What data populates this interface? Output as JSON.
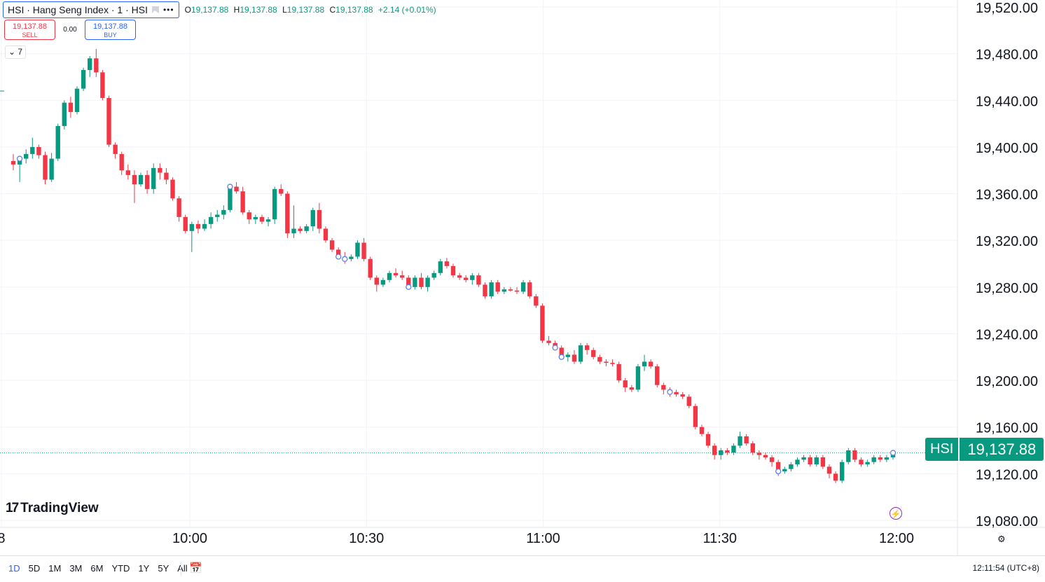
{
  "header": {
    "symbol_title": "HSI · Hang Seng Index · 1 · HSI",
    "more_icon": "more-dots-icon",
    "ohlc": [
      {
        "key": "O",
        "value": "19,137.88"
      },
      {
        "key": "H",
        "value": "19,137.88"
      },
      {
        "key": "L",
        "value": "19,137.88"
      },
      {
        "key": "C",
        "value": "19,137.88"
      }
    ],
    "change": "+2.14 (+0.01%)"
  },
  "trade": {
    "sell_price": "19,137.88",
    "sell_label": "SELL",
    "spread": "0.00",
    "buy_price": "19,137.88",
    "buy_label": "BUY"
  },
  "indicators_toggle": "⌄ 7",
  "logo_text": "TradingView",
  "price_label": {
    "symbol": "HSI",
    "value": "19,137.88"
  },
  "bottom": {
    "ranges": [
      "1D",
      "5D",
      "1M",
      "3M",
      "6M",
      "YTD",
      "1Y",
      "5Y",
      "All"
    ],
    "active_range": "1D",
    "clock": "12:11:54 (UTC+8)"
  },
  "colors": {
    "up": "#089981",
    "down": "#f23645",
    "grid": "#f0f3fa",
    "accent": "#2962ff"
  },
  "chart_data": {
    "type": "candlestick",
    "y_ticks": [
      "19,520.00",
      "19,480.00",
      "19,440.00",
      "19,400.00",
      "19,360.00",
      "19,320.00",
      "19,280.00",
      "19,240.00",
      "19,200.00",
      "19,160.00",
      "19,120.00",
      "19,080.00"
    ],
    "x_tick_labels": [
      "8",
      "10:00",
      "10:30",
      "11:00",
      "11:30",
      "12:00"
    ],
    "x_ticks": [
      {
        "label": "8",
        "minute": -32
      },
      {
        "label": "10:00",
        "minute": 0
      },
      {
        "label": "10:30",
        "minute": 30
      },
      {
        "label": "11:00",
        "minute": 60
      },
      {
        "label": "11:30",
        "minute": 90
      },
      {
        "label": "12:00",
        "minute": 120
      }
    ],
    "ylim": [
      19060,
      19527
    ],
    "last_price": 19137.88,
    "candles": [
      [
        19388,
        19394,
        19380,
        19385
      ],
      [
        19385,
        19392,
        19370,
        19390
      ],
      [
        19390,
        19398,
        19386,
        19394
      ],
      [
        19394,
        19408,
        19390,
        19400
      ],
      [
        19400,
        19402,
        19390,
        19393
      ],
      [
        19393,
        19396,
        19368,
        19372
      ],
      [
        19372,
        19395,
        19370,
        19390
      ],
      [
        19390,
        19420,
        19388,
        19418
      ],
      [
        19418,
        19440,
        19415,
        19438
      ],
      [
        19438,
        19443,
        19425,
        19430
      ],
      [
        19430,
        19452,
        19428,
        19450
      ],
      [
        19450,
        19468,
        19448,
        19466
      ],
      [
        19466,
        19478,
        19460,
        19476
      ],
      [
        19476,
        19484,
        19460,
        19464
      ],
      [
        19464,
        19466,
        19440,
        19442
      ],
      [
        19442,
        19444,
        19400,
        19402
      ],
      [
        19402,
        19404,
        19390,
        19394
      ],
      [
        19394,
        19396,
        19376,
        19380
      ],
      [
        19380,
        19385,
        19372,
        19376
      ],
      [
        19376,
        19380,
        19352,
        19368
      ],
      [
        19368,
        19378,
        19366,
        19376
      ],
      [
        19376,
        19380,
        19360,
        19364
      ],
      [
        19364,
        19386,
        19360,
        19382
      ],
      [
        19382,
        19386,
        19372,
        19378
      ],
      [
        19378,
        19382,
        19368,
        19372
      ],
      [
        19372,
        19374,
        19354,
        19356
      ],
      [
        19356,
        19358,
        19336,
        19340
      ],
      [
        19340,
        19342,
        19326,
        19328
      ],
      [
        19328,
        19336,
        19310,
        19334
      ],
      [
        19334,
        19337,
        19326,
        19330
      ],
      [
        19330,
        19338,
        19328,
        19334
      ],
      [
        19334,
        19344,
        19330,
        19340
      ],
      [
        19340,
        19346,
        19336,
        19342
      ],
      [
        19342,
        19350,
        19338,
        19346
      ],
      [
        19346,
        19368,
        19344,
        19366
      ],
      [
        19366,
        19370,
        19360,
        19362
      ],
      [
        19362,
        19366,
        19342,
        19344
      ],
      [
        19344,
        19346,
        19334,
        19338
      ],
      [
        19338,
        19342,
        19334,
        19340
      ],
      [
        19340,
        19342,
        19334,
        19336
      ],
      [
        19336,
        19340,
        19332,
        19338
      ],
      [
        19338,
        19366,
        19334,
        19364
      ],
      [
        19364,
        19368,
        19358,
        19360
      ],
      [
        19360,
        19362,
        19322,
        19326
      ],
      [
        19326,
        19350,
        19322,
        19330
      ],
      [
        19330,
        19332,
        19326,
        19328
      ],
      [
        19328,
        19334,
        19326,
        19332
      ],
      [
        19332,
        19348,
        19328,
        19346
      ],
      [
        19346,
        19352,
        19326,
        19330
      ],
      [
        19330,
        19332,
        19318,
        19320
      ],
      [
        19320,
        19322,
        19310,
        19312
      ],
      [
        19312,
        19314,
        19304,
        19306
      ],
      [
        19306,
        19310,
        19300,
        19304
      ],
      [
        19304,
        19308,
        19302,
        19306
      ],
      [
        19306,
        19320,
        19304,
        19318
      ],
      [
        19318,
        19322,
        19302,
        19304
      ],
      [
        19304,
        19306,
        19286,
        19288
      ],
      [
        19288,
        19290,
        19276,
        19282
      ],
      [
        19282,
        19288,
        19280,
        19286
      ],
      [
        19286,
        19294,
        19284,
        19292
      ],
      [
        19292,
        19296,
        19288,
        19290
      ],
      [
        19290,
        19294,
        19286,
        19288
      ],
      [
        19288,
        19290,
        19278,
        19280
      ],
      [
        19280,
        19290,
        19278,
        19288
      ],
      [
        19288,
        19292,
        19278,
        19280
      ],
      [
        19280,
        19290,
        19276,
        19288
      ],
      [
        19288,
        19294,
        19286,
        19292
      ],
      [
        19292,
        19304,
        19290,
        19302
      ],
      [
        19302,
        19305,
        19296,
        19298
      ],
      [
        19298,
        19300,
        19288,
        19290
      ],
      [
        19290,
        19292,
        19286,
        19288
      ],
      [
        19288,
        19290,
        19284,
        19286
      ],
      [
        19286,
        19292,
        19282,
        19290
      ],
      [
        19290,
        19292,
        19280,
        19282
      ],
      [
        19282,
        19284,
        19270,
        19272
      ],
      [
        19272,
        19286,
        19270,
        19284
      ],
      [
        19284,
        19286,
        19274,
        19276
      ],
      [
        19276,
        19280,
        19274,
        19278
      ],
      [
        19278,
        19280,
        19276,
        19277
      ],
      [
        19277,
        19280,
        19274,
        19276
      ],
      [
        19276,
        19286,
        19274,
        19284
      ],
      [
        19284,
        19286,
        19270,
        19272
      ],
      [
        19272,
        19274,
        19262,
        19264
      ],
      [
        19264,
        19266,
        19232,
        19234
      ],
      [
        19234,
        19238,
        19230,
        19232
      ],
      [
        19232,
        19234,
        19226,
        19228
      ],
      [
        19228,
        19230,
        19218,
        19220
      ],
      [
        19220,
        19224,
        19216,
        19222
      ],
      [
        19222,
        19226,
        19214,
        19216
      ],
      [
        19216,
        19232,
        19214,
        19230
      ],
      [
        19230,
        19232,
        19222,
        19226
      ],
      [
        19226,
        19228,
        19218,
        19220
      ],
      [
        19220,
        19222,
        19214,
        19216
      ],
      [
        19216,
        19218,
        19212,
        19215
      ],
      [
        19215,
        19218,
        19212,
        19214
      ],
      [
        19214,
        19216,
        19198,
        19200
      ],
      [
        19200,
        19202,
        19190,
        19194
      ],
      [
        19194,
        19196,
        19190,
        19192
      ],
      [
        19192,
        19214,
        19190,
        19212
      ],
      [
        19212,
        19222,
        19208,
        19216
      ],
      [
        19216,
        19218,
        19210,
        19212
      ],
      [
        19212,
        19214,
        19194,
        19196
      ],
      [
        19196,
        19198,
        19188,
        19192
      ],
      [
        19192,
        19194,
        19186,
        19190
      ],
      [
        19190,
        19192,
        19186,
        19188
      ],
      [
        19188,
        19190,
        19184,
        19186
      ],
      [
        19186,
        19188,
        19176,
        19178
      ],
      [
        19178,
        19180,
        19158,
        19160
      ],
      [
        19160,
        19162,
        19152,
        19154
      ],
      [
        19154,
        19156,
        19142,
        19144
      ],
      [
        19144,
        19146,
        19132,
        19136
      ],
      [
        19136,
        19142,
        19132,
        19140
      ],
      [
        19140,
        19142,
        19136,
        19138
      ],
      [
        19138,
        19146,
        19136,
        19144
      ],
      [
        19144,
        19156,
        19142,
        19152
      ],
      [
        19152,
        19154,
        19144,
        19146
      ],
      [
        19146,
        19148,
        19136,
        19138
      ],
      [
        19138,
        19140,
        19132,
        19136
      ],
      [
        19136,
        19138,
        19132,
        19134
      ],
      [
        19134,
        19136,
        19126,
        19130
      ],
      [
        19130,
        19132,
        19118,
        19122
      ],
      [
        19122,
        19126,
        19120,
        19124
      ],
      [
        19124,
        19130,
        19122,
        19128
      ],
      [
        19128,
        19134,
        19126,
        19132
      ],
      [
        19132,
        19136,
        19130,
        19134
      ],
      [
        19134,
        19136,
        19126,
        19128
      ],
      [
        19128,
        19136,
        19126,
        19134
      ],
      [
        19134,
        19136,
        19124,
        19126
      ],
      [
        19126,
        19128,
        19116,
        19120
      ],
      [
        19120,
        19122,
        19112,
        19114
      ],
      [
        19114,
        19132,
        19112,
        19130
      ],
      [
        19130,
        19142,
        19128,
        19140
      ],
      [
        19140,
        19142,
        19130,
        19132
      ],
      [
        19132,
        19134,
        19126,
        19128
      ],
      [
        19128,
        19132,
        19126,
        19130
      ],
      [
        19130,
        19136,
        19128,
        19134
      ],
      [
        19134,
        19136,
        19130,
        19132
      ],
      [
        19132,
        19136,
        19130,
        19134
      ],
      [
        19134,
        19138,
        19132,
        19137.88
      ]
    ],
    "markers": [
      1,
      34,
      51,
      52,
      62,
      85,
      86,
      103,
      120,
      139,
      145,
      148
    ]
  }
}
